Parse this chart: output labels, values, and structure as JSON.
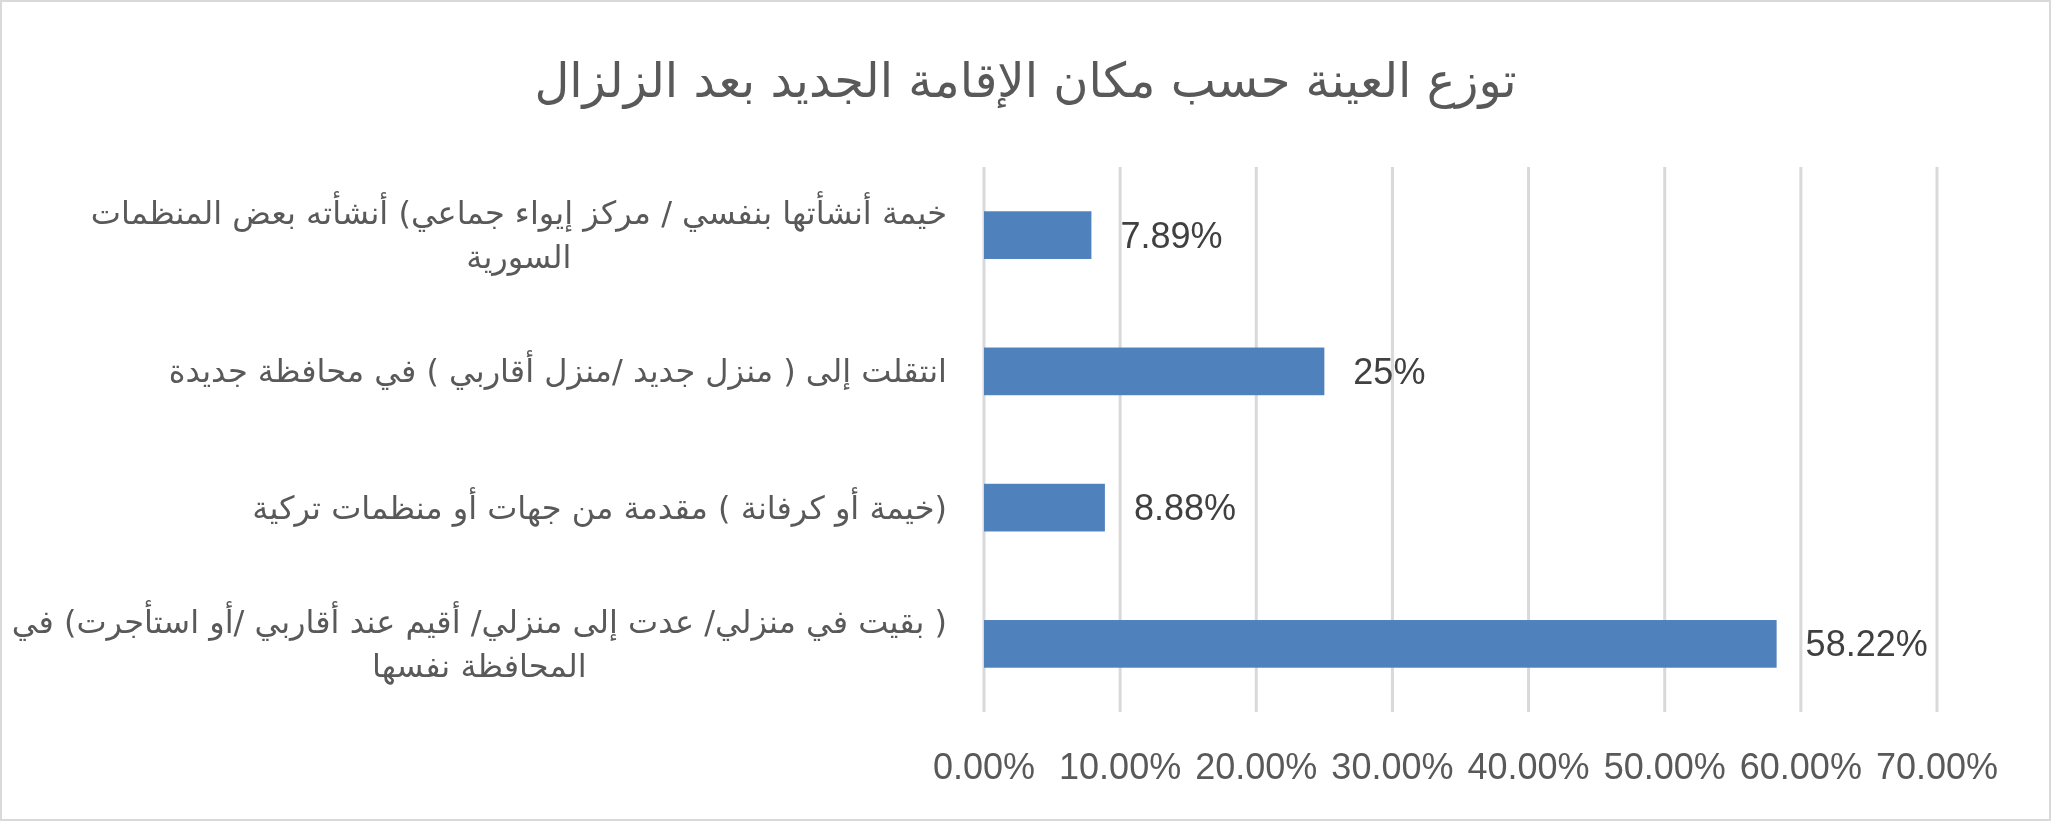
{
  "chart_data": {
    "type": "bar",
    "orientation": "horizontal",
    "title": "توزع العينة حسب مكان الإقامة الجديد بعد الزلزال",
    "categories": [
      "خيمة أنشأتها بنفسي / مركز إيواء جماعي) أنشأته بعض المنظمات السورية",
      "انتقلت إلى ( منزل جديد /منزل أقاربي ) في محافظة جديدة",
      "(خيمة أو كرفانة ) مقدمة من جهات أو منظمات تركية",
      "( بقيت في منزلي/ عدت إلى منزلي/ أقيم عند أقاربي /أو استأجرت) في المحافظة نفسها"
    ],
    "values": [
      7.89,
      25,
      8.88,
      58.22
    ],
    "color": "#4f81bd",
    "value_labels": [
      "7.89%",
      "25%",
      "8.88%",
      "58.22%"
    ],
    "xlim": [
      0,
      70
    ],
    "xticks": [
      {
        "value": 0,
        "label": "0.00%"
      },
      {
        "value": 10,
        "label": "10.00%"
      },
      {
        "value": 20,
        "label": "20.00%"
      },
      {
        "value": 30,
        "label": "30.00%"
      },
      {
        "value": 40,
        "label": "40.00%"
      },
      {
        "value": 50,
        "label": "50.00%"
      },
      {
        "value": 60,
        "label": "60.00%"
      },
      {
        "value": 70,
        "label": "70.00%"
      }
    ],
    "grid": "x"
  }
}
